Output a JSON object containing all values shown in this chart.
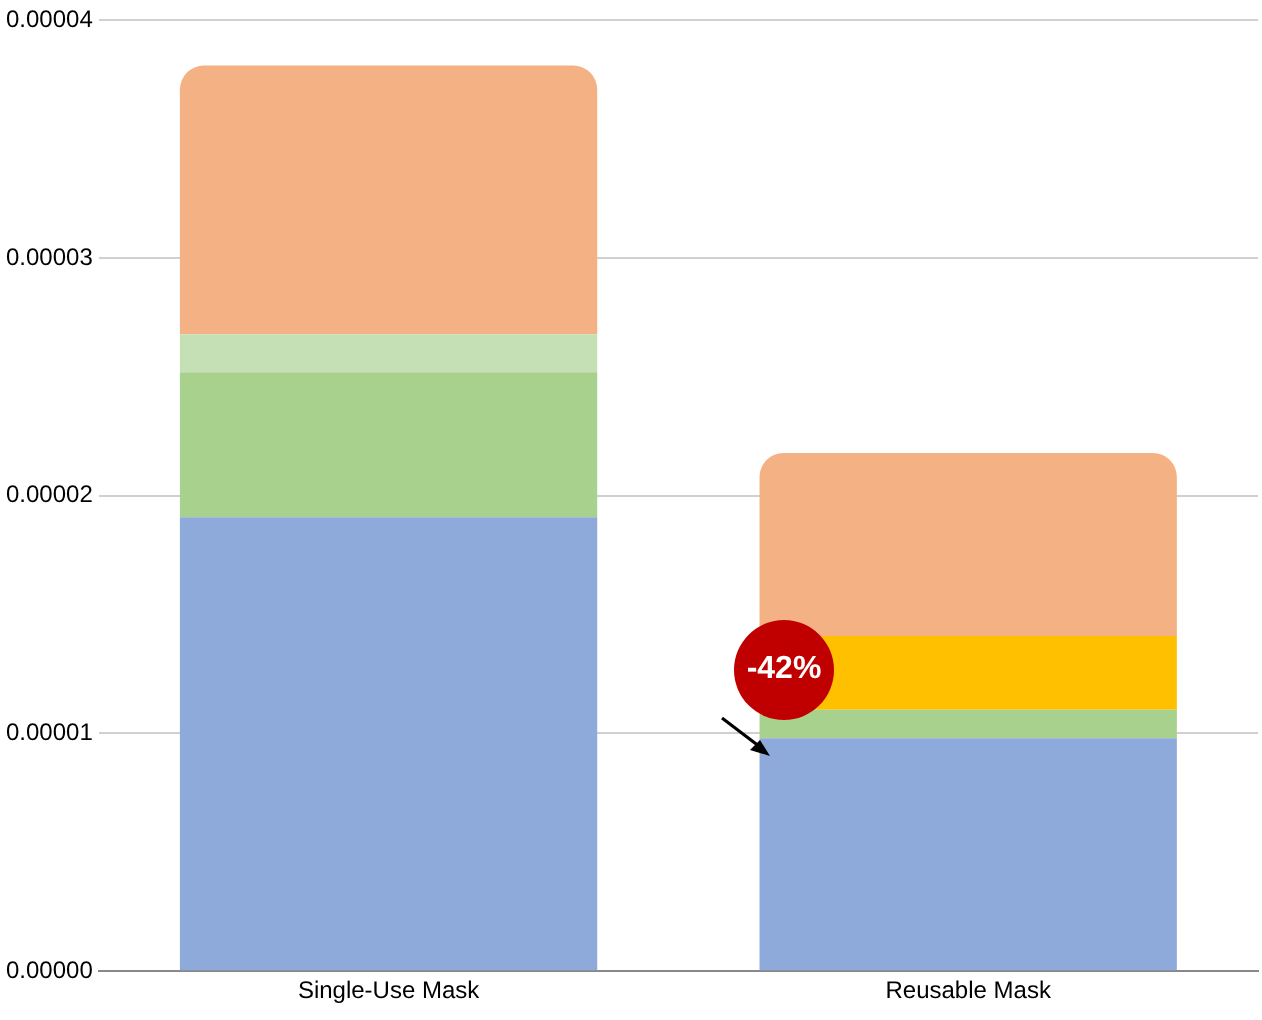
{
  "chart_data": {
    "type": "bar",
    "stacked": true,
    "categories": [
      "Single-Use Mask",
      "Reusable Mask"
    ],
    "series": [
      {
        "color": "#8eaadb",
        "values": [
          1.91e-05,
          9.8e-06
        ]
      },
      {
        "color": "#a9d18e",
        "values": [
          6.1e-06,
          1.2e-06
        ]
      },
      {
        "color": "#c5e0b4",
        "values": [
          1.6e-06,
          null
        ]
      },
      {
        "color": "#ffc000",
        "values": [
          null,
          3.1e-06
        ]
      },
      {
        "color": "#f4b183",
        "values": [
          1.13e-05,
          7.7e-06
        ]
      }
    ],
    "ylim": [
      0,
      4e-05
    ],
    "yticks": [
      {
        "value": 0,
        "label": "0.00000"
      },
      {
        "value": 1e-05,
        "label": "0.00001"
      },
      {
        "value": 2e-05,
        "label": "0.00002"
      },
      {
        "value": 3e-05,
        "label": "0.00003"
      },
      {
        "value": 4e-05,
        "label": "0.00004"
      }
    ],
    "grid": "y",
    "legend": false,
    "annotations": [
      "-42%"
    ]
  }
}
